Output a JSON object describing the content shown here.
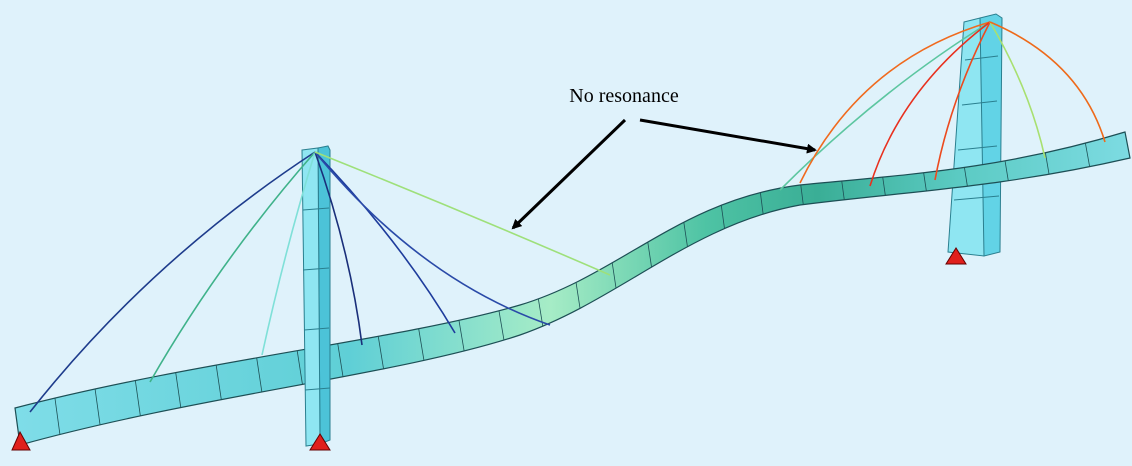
{
  "annotation": {
    "label": "No resonance"
  }
}
